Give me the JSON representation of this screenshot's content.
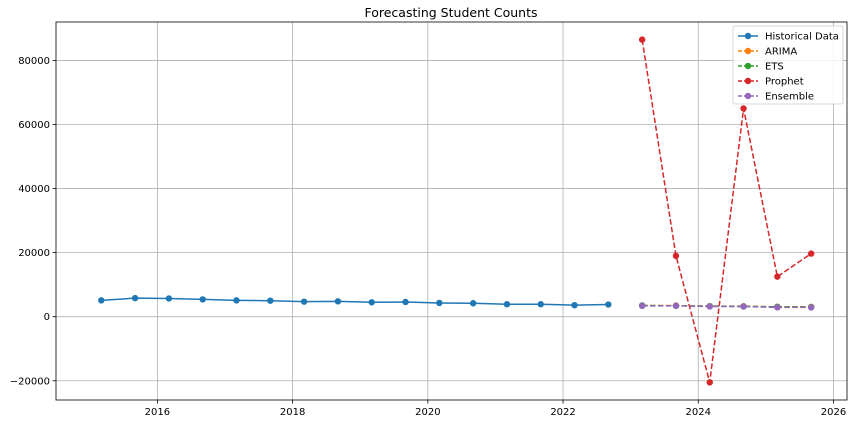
{
  "chart_data": {
    "type": "line",
    "title": "Forecasting Student Counts",
    "xlabel": "",
    "ylabel": "",
    "xlim": [
      2014.5,
      2026.2
    ],
    "ylim": [
      -26000,
      92000
    ],
    "x_ticks": [
      2016,
      2018,
      2020,
      2022,
      2024,
      2026
    ],
    "y_ticks": [
      -20000,
      0,
      20000,
      40000,
      60000,
      80000
    ],
    "y_tick_labels": [
      "−20000",
      "0",
      "20000",
      "40000",
      "60000",
      "80000"
    ],
    "grid": true,
    "legend_position": "top-right",
    "series": [
      {
        "name": "Historical Data",
        "style": "solid",
        "color": "#1f77b4",
        "x": [
          2015.17,
          2015.67,
          2016.17,
          2016.67,
          2017.17,
          2017.67,
          2018.17,
          2018.67,
          2019.17,
          2019.67,
          2020.17,
          2020.67,
          2021.17,
          2021.67,
          2022.17,
          2022.67
        ],
        "values": [
          5100,
          5800,
          5700,
          5400,
          5100,
          5000,
          4700,
          4800,
          4500,
          4600,
          4300,
          4200,
          3900,
          3900,
          3600,
          3800
        ]
      },
      {
        "name": "ARIMA",
        "style": "dashed",
        "color": "#ff7f0e",
        "x": [
          2023.17,
          2023.67,
          2024.17,
          2024.67,
          2025.17,
          2025.67
        ],
        "values": [
          3500,
          3500,
          3300,
          3300,
          3100,
          3100
        ]
      },
      {
        "name": "ETS",
        "style": "dashed",
        "color": "#2ca02c",
        "x": [
          2023.17,
          2023.67,
          2024.17,
          2024.67,
          2025.17,
          2025.67
        ],
        "values": [
          3500,
          3400,
          3300,
          3200,
          3100,
          3000
        ]
      },
      {
        "name": "Prophet",
        "style": "dashed",
        "color": "#d62728",
        "x": [
          2023.17,
          2023.67,
          2024.17,
          2024.67,
          2025.17,
          2025.67
        ],
        "values": [
          86500,
          19000,
          -20500,
          65000,
          12500,
          19700
        ]
      },
      {
        "name": "Ensemble",
        "style": "dashed",
        "color": "#9467bd",
        "x": [
          2023.17,
          2023.67,
          2024.17,
          2024.67,
          2025.17,
          2025.67
        ],
        "values": [
          3400,
          3400,
          3200,
          3200,
          2900,
          2900
        ]
      }
    ]
  }
}
